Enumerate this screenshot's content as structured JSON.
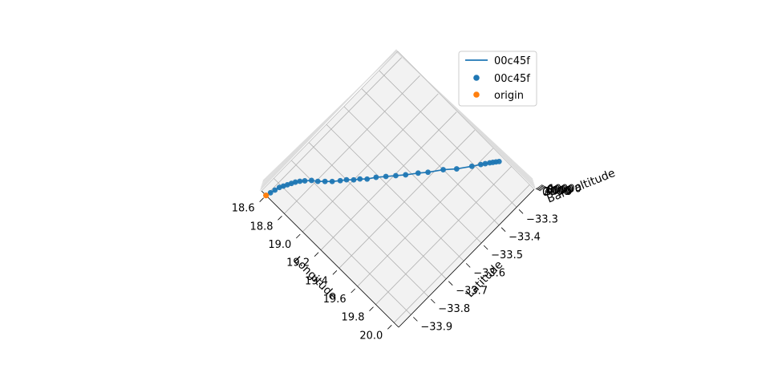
{
  "chart_data": {
    "type": "scatter",
    "projection": "3d",
    "title": "",
    "xlabel": "Longitude",
    "ylabel": "Latitude",
    "zlabel": "Baro altitude",
    "xticks": [
      "18.6",
      "18.8",
      "19.0",
      "19.2",
      "19.4",
      "19.6",
      "19.8",
      "20.0"
    ],
    "yticks": [
      "−33.9",
      "−33.8",
      "−33.7",
      "−33.6",
      "−33.5",
      "−33.4",
      "−33.3"
    ],
    "zticks": [
      "0",
      "2000",
      "4000",
      "6000",
      "8000",
      "10000"
    ],
    "grid": true,
    "legend": {
      "placement": "top-right",
      "entries": [
        {
          "label": "00c45f",
          "kind": "line",
          "color": "#1f77b4"
        },
        {
          "label": "00c45f",
          "kind": "scatter",
          "color": "#1f77b4"
        },
        {
          "label": "origin",
          "kind": "scatter",
          "color": "#ff7f0e"
        }
      ]
    },
    "colors": {
      "track": "#1f77b4",
      "origin": "#ff7f0e"
    },
    "series": [
      {
        "name": "00c45f",
        "points": [
          {
            "lon": 18.6,
            "lat": -33.97
          },
          {
            "lon": 18.61,
            "lat": -33.95
          },
          {
            "lon": 18.62,
            "lat": -33.93
          },
          {
            "lon": 18.63,
            "lat": -33.91
          },
          {
            "lon": 18.645,
            "lat": -33.895
          },
          {
            "lon": 18.66,
            "lat": -33.88
          },
          {
            "lon": 18.675,
            "lat": -33.865
          },
          {
            "lon": 18.69,
            "lat": -33.85
          },
          {
            "lon": 18.71,
            "lat": -33.835
          },
          {
            "lon": 18.735,
            "lat": -33.82
          },
          {
            "lon": 18.77,
            "lat": -33.8
          },
          {
            "lon": 18.81,
            "lat": -33.785
          },
          {
            "lon": 18.85,
            "lat": -33.765
          },
          {
            "lon": 18.89,
            "lat": -33.745
          },
          {
            "lon": 18.93,
            "lat": -33.72
          },
          {
            "lon": 18.96,
            "lat": -33.7
          },
          {
            "lon": 19.0,
            "lat": -33.68
          },
          {
            "lon": 19.03,
            "lat": -33.66
          },
          {
            "lon": 19.07,
            "lat": -33.64
          },
          {
            "lon": 19.11,
            "lat": -33.61
          },
          {
            "lon": 19.16,
            "lat": -33.58
          },
          {
            "lon": 19.21,
            "lat": -33.55
          },
          {
            "lon": 19.26,
            "lat": -33.52
          },
          {
            "lon": 19.32,
            "lat": -33.48
          },
          {
            "lon": 19.37,
            "lat": -33.45
          },
          {
            "lon": 19.44,
            "lat": -33.4
          },
          {
            "lon": 19.51,
            "lat": -33.36
          },
          {
            "lon": 19.58,
            "lat": -33.31
          },
          {
            "lon": 19.62,
            "lat": -33.28
          },
          {
            "lon": 19.64,
            "lat": -33.265
          },
          {
            "lon": 19.66,
            "lat": -33.25
          },
          {
            "lon": 19.675,
            "lat": -33.24
          },
          {
            "lon": 19.69,
            "lat": -33.23
          },
          {
            "lon": 19.705,
            "lat": -33.22
          }
        ]
      }
    ],
    "origin": {
      "name": "origin",
      "lon": 18.6,
      "lat": -33.97
    }
  }
}
